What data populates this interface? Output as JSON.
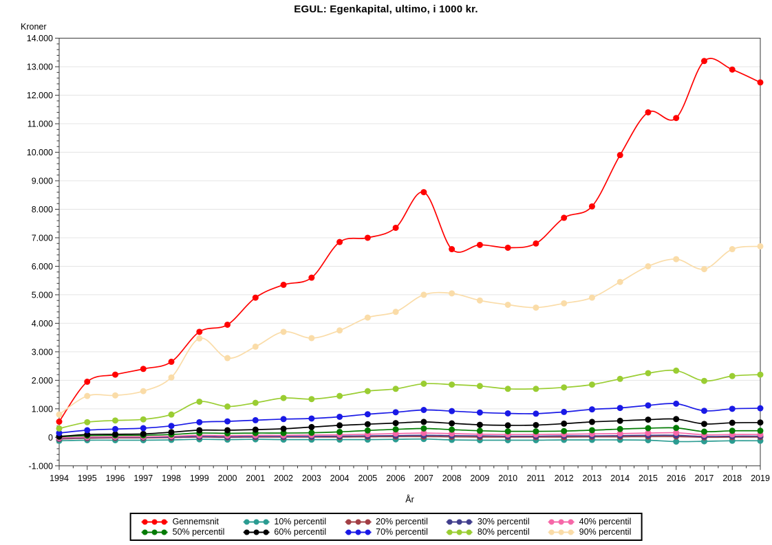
{
  "title": "EGUL: Egenkapital, ultimo, i 1000 kr.",
  "chart_data": {
    "type": "line",
    "title": "EGUL: Egenkapital, ultimo, i 1000 kr.",
    "xlabel": "År",
    "ylabel": "Kroner",
    "grid": true,
    "legend_position": "bottom",
    "legend_layout": {
      "rows": 2,
      "columns": 5
    },
    "x": [
      1994,
      1995,
      1996,
      1997,
      1998,
      1999,
      2000,
      2001,
      2002,
      2003,
      2004,
      2005,
      2006,
      2007,
      2008,
      2009,
      2010,
      2011,
      2012,
      2013,
      2014,
      2015,
      2016,
      2017,
      2018,
      2019
    ],
    "ylim": [
      -1000,
      14000
    ],
    "yticks": {
      "values": [
        -1000,
        0,
        1000,
        2000,
        3000,
        4000,
        5000,
        6000,
        7000,
        8000,
        9000,
        10000,
        11000,
        12000,
        13000,
        14000
      ],
      "labels": [
        "-1.000",
        "0",
        "1.000",
        "2.000",
        "3.000",
        "4.000",
        "5.000",
        "6.000",
        "7.000",
        "8.000",
        "9.000",
        "10.000",
        "11.000",
        "12.000",
        "13.000",
        "14.000"
      ]
    },
    "series": [
      {
        "name": "Gennemsnit",
        "color": "#ff0000",
        "values": [
          550,
          1950,
          2200,
          2400,
          2650,
          3700,
          3950,
          4900,
          5350,
          5600,
          6850,
          7000,
          7350,
          8600,
          6600,
          6750,
          6650,
          6800,
          7700,
          8100,
          9900,
          11400,
          11200,
          13200,
          12900,
          12450
        ]
      },
      {
        "name": "10% percentil",
        "color": "#2b9c92",
        "values": [
          -120,
          -100,
          -100,
          -100,
          -90,
          -70,
          -80,
          -70,
          -80,
          -80,
          -80,
          -80,
          -70,
          -60,
          -90,
          -100,
          -100,
          -100,
          -90,
          -90,
          -90,
          -100,
          -150,
          -140,
          -120,
          -120
        ]
      },
      {
        "name": "20% percentil",
        "color": "#a23f45",
        "values": [
          -60,
          -30,
          -20,
          -20,
          -10,
          10,
          0,
          10,
          10,
          10,
          10,
          20,
          30,
          30,
          20,
          10,
          10,
          10,
          10,
          20,
          20,
          30,
          30,
          0,
          10,
          10
        ]
      },
      {
        "name": "30% percentil",
        "color": "#413e8c",
        "values": [
          -40,
          -10,
          0,
          0,
          10,
          30,
          20,
          30,
          30,
          30,
          40,
          50,
          60,
          70,
          60,
          50,
          40,
          40,
          50,
          50,
          60,
          70,
          70,
          30,
          40,
          40
        ]
      },
      {
        "name": "40% percentil",
        "color": "#f668a8",
        "values": [
          -20,
          10,
          20,
          20,
          40,
          70,
          60,
          70,
          70,
          80,
          90,
          110,
          130,
          150,
          130,
          110,
          100,
          100,
          110,
          120,
          130,
          150,
          160,
          90,
          100,
          100
        ]
      },
      {
        "name": "50% percentil",
        "color": "#047b05",
        "values": [
          20,
          60,
          70,
          70,
          100,
          150,
          140,
          150,
          150,
          160,
          190,
          240,
          280,
          310,
          270,
          230,
          210,
          210,
          220,
          250,
          290,
          320,
          330,
          200,
          230,
          230
        ]
      },
      {
        "name": "60% percentil",
        "color": "#000000",
        "values": [
          30,
          100,
          110,
          120,
          180,
          250,
          250,
          270,
          300,
          360,
          420,
          460,
          500,
          540,
          490,
          440,
          420,
          430,
          480,
          540,
          580,
          620,
          640,
          470,
          510,
          520
        ]
      },
      {
        "name": "70% percentil",
        "color": "#1919e6",
        "values": [
          150,
          250,
          290,
          320,
          400,
          530,
          560,
          600,
          640,
          660,
          720,
          810,
          880,
          960,
          920,
          870,
          840,
          830,
          890,
          980,
          1030,
          1120,
          1180,
          930,
          1000,
          1020
        ]
      },
      {
        "name": "80% percentil",
        "color": "#9acd32",
        "values": [
          310,
          530,
          590,
          630,
          800,
          1250,
          1080,
          1210,
          1380,
          1340,
          1450,
          1620,
          1700,
          1880,
          1850,
          1800,
          1700,
          1700,
          1750,
          1850,
          2050,
          2250,
          2340,
          1980,
          2150,
          2200
        ]
      },
      {
        "name": "90% percentil",
        "color": "#fadca8",
        "values": [
          800,
          1450,
          1470,
          1620,
          2100,
          3470,
          2780,
          3180,
          3700,
          3480,
          3750,
          4200,
          4400,
          5000,
          5050,
          4800,
          4650,
          4550,
          4700,
          4900,
          5450,
          6000,
          6250,
          5900,
          6600,
          6700
        ]
      }
    ]
  }
}
